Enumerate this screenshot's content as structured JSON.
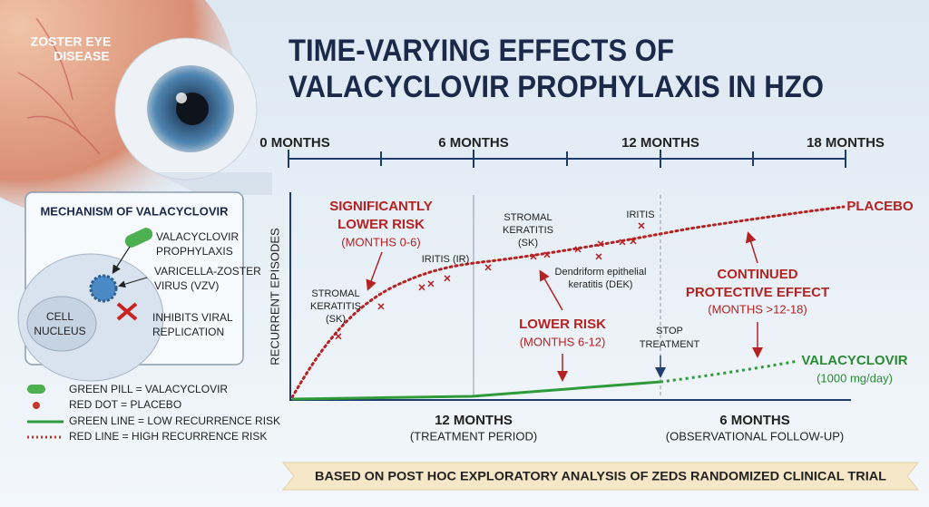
{
  "header": {
    "title_lines": [
      "TIME-VARYING EFFECTS OF",
      "VALACYCLOVIR PROPHYLAXIS IN HZO"
    ]
  },
  "eye_label": [
    "ZOSTER EYE",
    "DISEASE"
  ],
  "timeline": [
    "0 MONTHS",
    "6 MONTHS",
    "12 MONTHS",
    "18 MONTHS"
  ],
  "mechanism": {
    "title": "MECHANISM OF VALACYCLOVIR",
    "cell": [
      "CELL",
      "NUCLEUS"
    ],
    "labels": [
      [
        "VALACYCLOVIR",
        "PROPHYLAXIS"
      ],
      [
        "VARICELLA-ZOSTER",
        "VIRUS (VZV)"
      ],
      [
        "INHIBITS VIRAL",
        "REPLICATION"
      ]
    ]
  },
  "legend": [
    "GREEN PILL = VALACYCLOVIR",
    "RED DOT = PLACEBO",
    "GREEN LINE = LOW RECURRENCE RISK",
    "RED LINE = HIGH RECURRENCE RISK"
  ],
  "plot": {
    "y_label": "RECURRENT EPISODES",
    "early": {
      "heading": [
        "SIGNIFICANTLY",
        "LOWER RISK"
      ],
      "period": "(MONTHS 0-6)"
    },
    "events": {
      "sk_early": [
        "STROMAL",
        "KERATITIS",
        "(SK)"
      ],
      "ir_early": "IRITIS (IR)",
      "sk_late": [
        "STROMAL",
        "KERATITIS",
        "(SK)"
      ],
      "iritis": "IRITIS",
      "dek": [
        "Dendriform epithelial",
        "keratitis (DEK)"
      ]
    },
    "mid": {
      "heading": "LOWER RISK",
      "period": "(MONTHS 6-12)"
    },
    "stop": [
      "STOP",
      "TREATMENT"
    ],
    "placebo": "PLACEBO",
    "late": {
      "heading": [
        "CONTINUED",
        "PROTECTIVE EFFECT"
      ],
      "period": "(MONTHS >12-18)"
    },
    "drug": {
      "name": "VALACYCLOVIR",
      "dose": "(1000 mg/day)"
    }
  },
  "periods": [
    {
      "length": "12 MONTHS",
      "label": "(TREATMENT PERIOD)"
    },
    {
      "length": "6 MONTHS",
      "label": "(OBSERVATIONAL FOLLOW-UP)"
    }
  ],
  "footer": "BASED ON POST HOC EXPLORATORY ANALYSIS OF ZEDS RANDOMIZED CLINICAL TRIAL"
}
